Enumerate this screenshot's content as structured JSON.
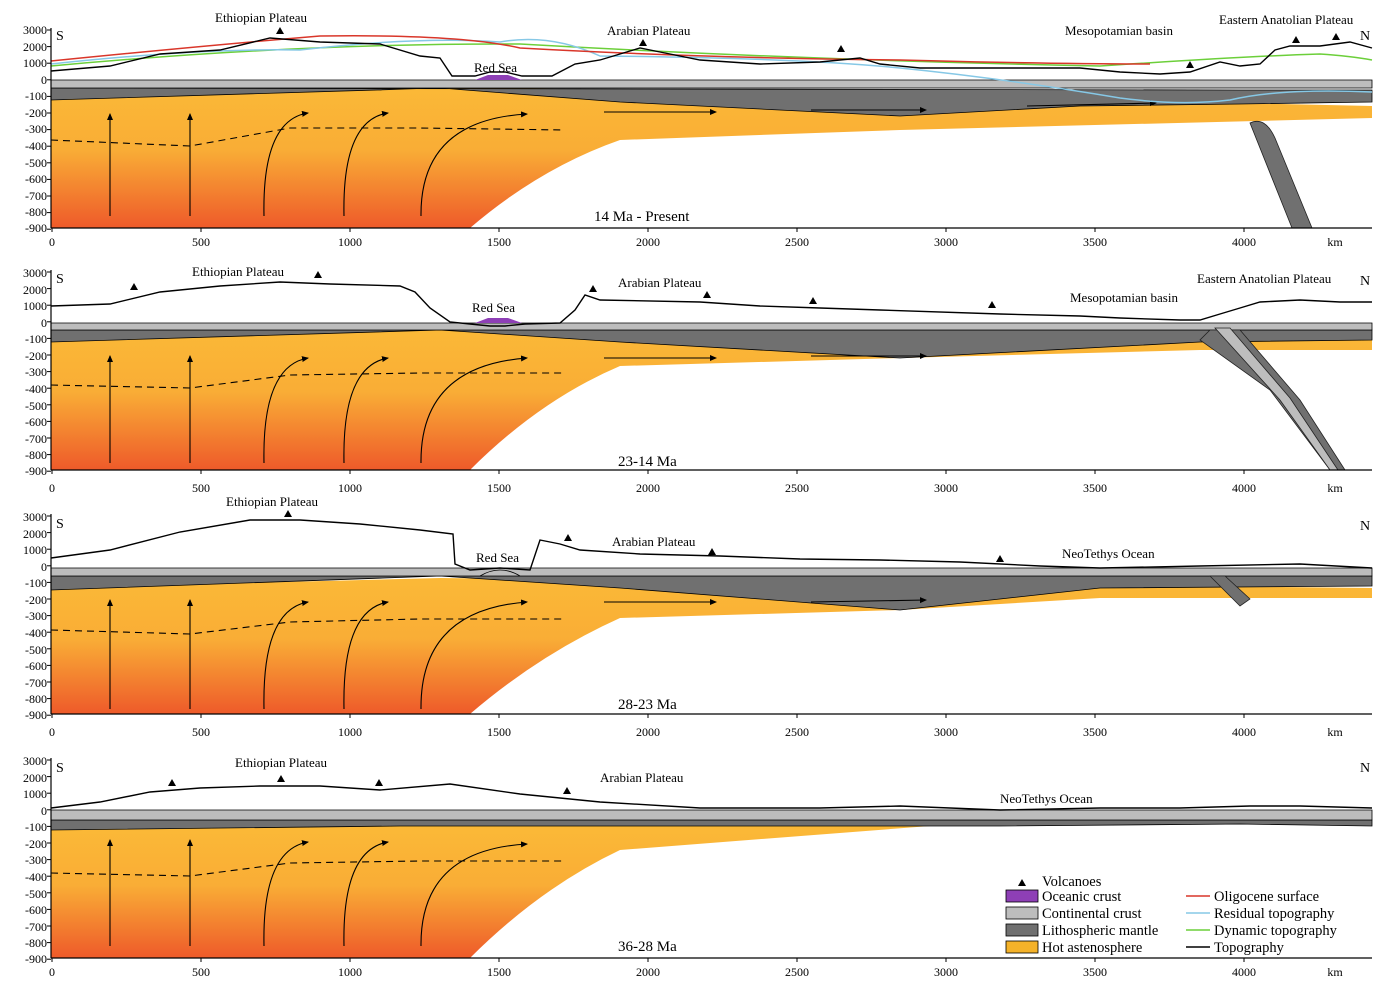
{
  "x_axis": {
    "unit_label": "km",
    "ticks": [
      "0",
      "500",
      "1000",
      "1500",
      "2000",
      "2500",
      "3000",
      "3500",
      "4000"
    ]
  },
  "y_axis": {
    "ticks": [
      "3000",
      "2000",
      "1000",
      "0",
      "-100",
      "-200",
      "-300",
      "-400",
      "-500",
      "-600",
      "-700",
      "-800",
      "-900"
    ]
  },
  "panels": [
    {
      "period": "14 Ma - Present",
      "south_label": "S",
      "north_label": "N",
      "places": [
        "Ethiopian Plateau",
        "Arabian Plateau",
        "Red Sea",
        "Mesopotamian basin",
        "Eastern Anatolian Plateau"
      ],
      "volcano_km": [
        760,
        1990,
        2650,
        3820,
        4180,
        4320
      ]
    },
    {
      "period": "23-14 Ma",
      "south_label": "S",
      "north_label": "N",
      "places": [
        "Ethiopian Plateau",
        "Arabian Plateau",
        "Red Sea",
        "Mesopotamian basin",
        "Eastern Anatolian Plateau"
      ],
      "volcano_km": [
        270,
        890,
        1820,
        2200,
        2550,
        3150
      ]
    },
    {
      "period": "28-23 Ma",
      "south_label": "S",
      "north_label": "N",
      "places": [
        "Ethiopian Plateau",
        "Red Sea",
        "Arabian Plateau",
        "NeoTethys Ocean"
      ],
      "volcano_km": [
        800,
        1730,
        2220,
        3180
      ]
    },
    {
      "period": "36-28 Ma",
      "south_label": "S",
      "north_label": "N",
      "places": [
        "Ethiopian Plateau",
        "Arabian Plateau",
        "NeoTethys Ocean"
      ],
      "volcano_km": [
        400,
        770,
        1100,
        1730
      ]
    }
  ],
  "legend": {
    "volcanoes": "Volcanoes",
    "oceanic_crust": "Oceanic crust",
    "continental_crust": "Continental crust",
    "lithospheric_mantle": "Lithospheric mantle",
    "hot_asthenosphere": "Hot astenosphere",
    "oligocene_surface": "Oligocene surface",
    "residual_topography": "Residual topography",
    "dynamic_topography": "Dynamic topography",
    "topography": "Topography"
  },
  "colors": {
    "oceanic_crust": "#8e3fb6",
    "continental_crust": "#bdbdbd",
    "lithospheric_mantle": "#707070",
    "hot_asthenosphere_top": "#fbb937",
    "hot_asthenosphere_bottom": "#ee5a2a",
    "oligocene_surface": "#d9362a",
    "residual_topography": "#86c8e6",
    "dynamic_topography": "#6ccf3a",
    "topography": "#000000"
  }
}
